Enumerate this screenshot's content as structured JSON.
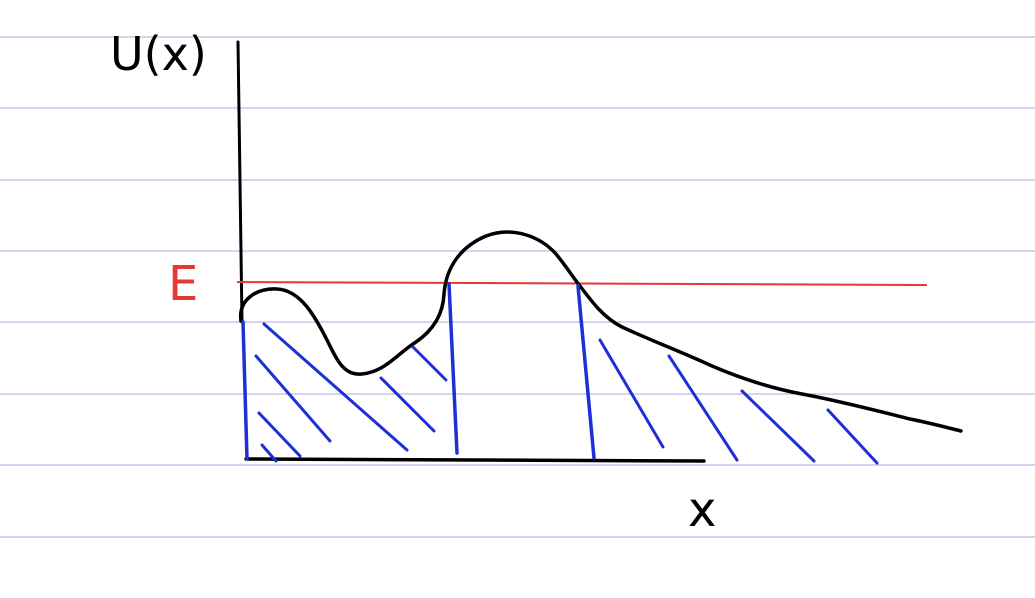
{
  "labels": {
    "y_axis": "U(x)",
    "x_axis": "x",
    "energy": "E"
  },
  "colors": {
    "paper": "#ffffff",
    "ruled_lines": "#aaaadd",
    "ink": "#000000",
    "energy_line": "#e53935",
    "hatching": "#1f2fd6"
  }
}
